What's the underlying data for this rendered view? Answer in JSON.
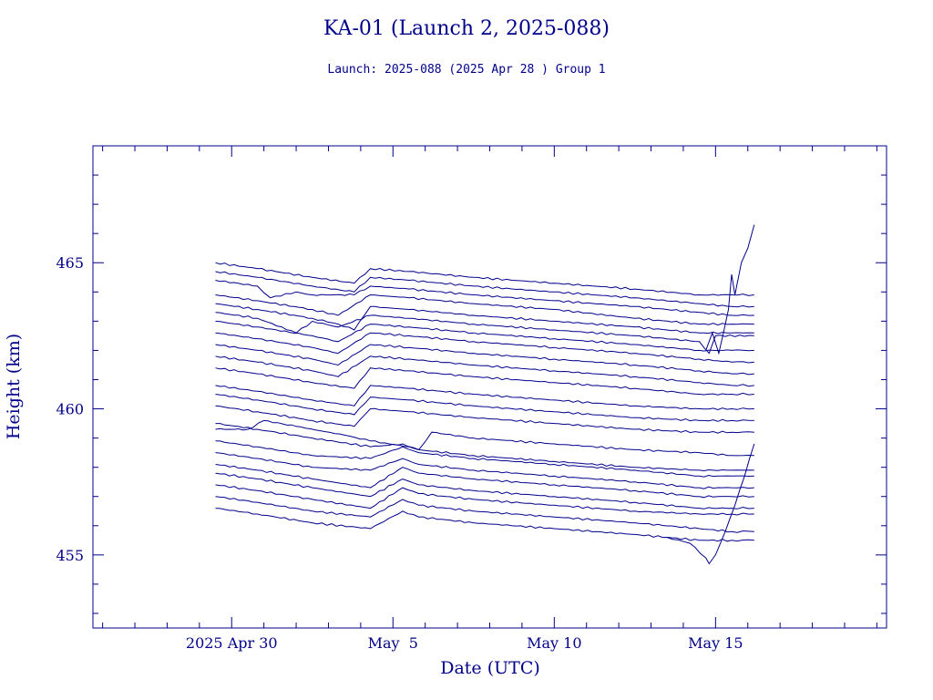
{
  "colors": {
    "ink": "#00008b",
    "background": "#ffffff"
  },
  "chart_data": {
    "type": "line",
    "title": "KA-01 (Launch 2, 2025-088)",
    "subtitle": "Launch: 2025-088  (2025 Apr 28 )  Group 1",
    "xlabel": "Date (UTC)",
    "ylabel": "Height (km)",
    "x_unit": "days",
    "x_ticks": [
      {
        "x": 0,
        "label": "2025 Apr 30"
      },
      {
        "x": 5,
        "label": "May  5"
      },
      {
        "x": 10,
        "label": "May 10"
      },
      {
        "x": 15,
        "label": "May 15"
      }
    ],
    "xlim": [
      -4.3,
      20.3
    ],
    "ylim": [
      452.5,
      469.0
    ],
    "y_ticks": [
      455,
      460,
      465
    ],
    "grid": false,
    "legend": "none",
    "series": [
      {
        "x": [
          -0.5,
          0.8,
          2.5,
          3.8,
          4.3,
          5.5,
          7.5,
          10.0,
          12.5,
          14.5,
          15.5,
          16.2
        ],
        "y": [
          465.0,
          464.8,
          464.5,
          464.3,
          464.8,
          464.7,
          464.5,
          464.3,
          464.1,
          463.9,
          463.9,
          463.9
        ]
      },
      {
        "x": [
          -0.5,
          0.8,
          2.5,
          3.8,
          4.3,
          5.5,
          7.5,
          10.0,
          12.5,
          14.5,
          15.5,
          16.2
        ],
        "y": [
          464.7,
          464.5,
          464.2,
          464.0,
          464.5,
          464.4,
          464.2,
          464.0,
          463.8,
          463.6,
          463.5,
          463.5
        ]
      },
      {
        "x": [
          -0.5,
          0.8,
          1.2,
          2.0,
          2.5,
          3.8,
          4.3,
          5.5,
          7.5,
          10.0,
          12.5,
          14.5,
          15.5,
          16.2
        ],
        "y": [
          464.4,
          464.2,
          463.8,
          464.0,
          463.9,
          463.9,
          464.2,
          464.1,
          463.9,
          463.7,
          463.5,
          463.3,
          463.2,
          463.2
        ]
      },
      {
        "x": [
          -0.5,
          0.8,
          2.5,
          3.3,
          4.3,
          5.5,
          7.5,
          10.0,
          12.5,
          14.5,
          15.5,
          16.2
        ],
        "y": [
          463.9,
          463.7,
          463.4,
          463.2,
          463.9,
          463.8,
          463.6,
          463.4,
          463.1,
          462.9,
          462.9,
          462.9
        ]
      },
      {
        "x": [
          -0.5,
          0.8,
          2.5,
          3.3,
          3.8,
          4.3,
          5.5,
          7.5,
          10.0,
          12.5,
          14.5,
          15.5,
          16.2
        ],
        "y": [
          463.6,
          463.4,
          463.1,
          462.9,
          462.7,
          463.5,
          463.4,
          463.2,
          463.0,
          462.8,
          462.6,
          462.6,
          462.6
        ]
      },
      {
        "x": [
          -0.5,
          0.8,
          2.0,
          2.5,
          3.3,
          4.3,
          5.5,
          7.5,
          10.0,
          12.5,
          14.5,
          14.8,
          15.0,
          16.2
        ],
        "y": [
          463.3,
          463.1,
          462.6,
          463.0,
          462.8,
          463.2,
          463.1,
          462.9,
          462.7,
          462.5,
          462.3,
          461.9,
          462.5,
          462.5
        ]
      },
      {
        "x": [
          -0.5,
          0.8,
          2.5,
          3.3,
          4.3,
          5.5,
          7.5,
          10.0,
          12.5,
          14.5,
          15.5,
          16.2
        ],
        "y": [
          463.0,
          462.8,
          462.5,
          462.3,
          462.9,
          462.8,
          462.6,
          462.4,
          462.2,
          462.0,
          462.0,
          462.0
        ]
      },
      {
        "x": [
          -0.5,
          0.8,
          2.5,
          3.3,
          4.3,
          5.5,
          7.5,
          10.0,
          12.5,
          14.5,
          15.5,
          16.2
        ],
        "y": [
          462.6,
          462.4,
          462.1,
          461.9,
          462.6,
          462.5,
          462.3,
          462.1,
          461.9,
          461.7,
          461.6,
          461.6
        ]
      },
      {
        "x": [
          -0.5,
          0.8,
          2.5,
          3.3,
          4.3,
          5.5,
          7.5,
          10.0,
          12.5,
          14.5,
          15.5,
          16.2
        ],
        "y": [
          462.2,
          462.0,
          461.7,
          461.5,
          462.2,
          462.1,
          461.9,
          461.7,
          461.5,
          461.3,
          461.2,
          461.2
        ]
      },
      {
        "x": [
          -0.5,
          0.8,
          2.5,
          3.3,
          4.3,
          5.5,
          7.5,
          10.0,
          12.5,
          14.5,
          15.5,
          16.2
        ],
        "y": [
          461.8,
          461.6,
          461.3,
          461.1,
          461.8,
          461.7,
          461.5,
          461.3,
          461.1,
          460.9,
          460.8,
          460.8
        ]
      },
      {
        "x": [
          -0.5,
          0.8,
          2.5,
          3.8,
          4.3,
          5.5,
          7.5,
          10.0,
          12.5,
          14.5,
          15.5,
          16.2
        ],
        "y": [
          461.4,
          461.2,
          460.9,
          460.7,
          461.4,
          461.3,
          461.1,
          460.9,
          460.7,
          460.5,
          460.5,
          460.5
        ]
      },
      {
        "x": [
          -0.5,
          0.8,
          2.5,
          3.8,
          4.3,
          5.5,
          7.5,
          10.0,
          12.5,
          14.5,
          15.5,
          16.2
        ],
        "y": [
          460.8,
          460.6,
          460.3,
          460.1,
          460.8,
          460.7,
          460.5,
          460.3,
          460.1,
          460.0,
          460.0,
          460.0
        ]
      },
      {
        "x": [
          -0.5,
          0.8,
          2.5,
          3.8,
          4.3,
          5.5,
          7.5,
          10.0,
          12.5,
          14.5,
          15.5,
          16.2
        ],
        "y": [
          460.5,
          460.3,
          460.0,
          459.8,
          460.4,
          460.3,
          460.1,
          459.9,
          459.7,
          459.6,
          459.6,
          459.6
        ]
      },
      {
        "x": [
          -0.5,
          0.8,
          2.5,
          3.8,
          4.3,
          5.5,
          7.5,
          10.0,
          12.5,
          14.5,
          15.5,
          16.2
        ],
        "y": [
          460.1,
          459.9,
          459.6,
          459.4,
          460.0,
          459.9,
          459.7,
          459.5,
          459.3,
          459.2,
          459.2,
          459.2
        ]
      },
      {
        "x": [
          -0.5,
          0.5,
          1.0,
          2.0,
          3.5,
          4.3,
          5.5,
          5.8,
          6.2,
          7.5,
          10.0,
          12.5,
          14.5,
          15.5,
          16.2
        ],
        "y": [
          459.3,
          459.3,
          459.6,
          459.4,
          459.1,
          458.9,
          458.7,
          458.6,
          459.2,
          459.0,
          458.8,
          458.6,
          458.5,
          458.4,
          458.4
        ]
      },
      {
        "x": [
          -0.5,
          0.8,
          2.5,
          4.3,
          5.3,
          5.8,
          7.5,
          10.0,
          12.5,
          14.5,
          15.5,
          16.2
        ],
        "y": [
          459.5,
          459.3,
          459.0,
          458.7,
          458.8,
          458.6,
          458.4,
          458.2,
          458.0,
          457.9,
          457.9,
          457.9
        ]
      },
      {
        "x": [
          -0.5,
          0.8,
          2.5,
          4.3,
          5.3,
          5.8,
          7.5,
          10.0,
          12.5,
          14.5,
          15.5,
          16.2
        ],
        "y": [
          458.9,
          458.7,
          458.4,
          458.3,
          458.7,
          458.5,
          458.3,
          458.1,
          457.9,
          457.7,
          457.7,
          457.7
        ]
      },
      {
        "x": [
          -0.5,
          0.8,
          2.5,
          4.3,
          5.3,
          5.8,
          7.5,
          10.0,
          12.5,
          14.5,
          15.5,
          16.2
        ],
        "y": [
          458.5,
          458.3,
          458.0,
          457.9,
          458.3,
          458.1,
          457.9,
          457.7,
          457.5,
          457.3,
          457.3,
          457.3
        ]
      },
      {
        "x": [
          -0.5,
          0.8,
          2.5,
          4.3,
          5.3,
          5.8,
          7.5,
          10.0,
          12.5,
          14.5,
          15.5,
          16.2
        ],
        "y": [
          458.1,
          457.9,
          457.6,
          457.3,
          458.0,
          457.8,
          457.6,
          457.4,
          457.2,
          457.0,
          457.0,
          457.0
        ]
      },
      {
        "x": [
          -0.5,
          0.8,
          2.5,
          4.3,
          5.3,
          5.8,
          7.5,
          10.0,
          12.5,
          14.5,
          15.5,
          16.2
        ],
        "y": [
          457.8,
          457.6,
          457.3,
          457.0,
          457.6,
          457.4,
          457.2,
          457.0,
          456.8,
          456.6,
          456.6,
          456.6
        ]
      },
      {
        "x": [
          -0.5,
          0.8,
          2.5,
          4.3,
          5.3,
          5.8,
          7.5,
          10.0,
          12.5,
          14.5,
          15.5,
          16.2
        ],
        "y": [
          457.4,
          457.2,
          456.9,
          456.6,
          457.3,
          457.1,
          456.9,
          456.7,
          456.5,
          456.4,
          456.4,
          456.4
        ]
      },
      {
        "x": [
          -0.5,
          0.8,
          2.5,
          4.3,
          5.3,
          5.8,
          7.5,
          10.0,
          12.5,
          14.5,
          15.5,
          16.2
        ],
        "y": [
          457.0,
          456.8,
          456.5,
          456.3,
          456.9,
          456.7,
          456.5,
          456.3,
          456.1,
          455.9,
          455.8,
          455.8
        ]
      },
      {
        "x": [
          -0.5,
          0.8,
          2.5,
          4.3,
          5.3,
          5.8,
          7.5,
          10.0,
          12.5,
          14.5,
          15.5,
          16.2
        ],
        "y": [
          456.6,
          456.4,
          456.1,
          455.9,
          456.5,
          456.3,
          456.1,
          455.9,
          455.7,
          455.5,
          455.5,
          455.5
        ]
      },
      {
        "x": [
          13.5,
          14.2,
          14.7,
          14.8,
          15.0,
          15.3,
          15.6,
          15.9,
          16.2
        ],
        "y": [
          455.6,
          455.4,
          454.9,
          454.7,
          455.0,
          455.8,
          456.7,
          457.7,
          458.8
        ]
      },
      {
        "x": [
          14.7,
          14.9,
          15.1,
          15.4,
          15.5,
          15.6,
          15.8,
          16.0,
          16.2
        ],
        "y": [
          462.0,
          462.6,
          461.9,
          463.4,
          464.6,
          463.9,
          465.0,
          465.5,
          466.3
        ]
      }
    ]
  }
}
